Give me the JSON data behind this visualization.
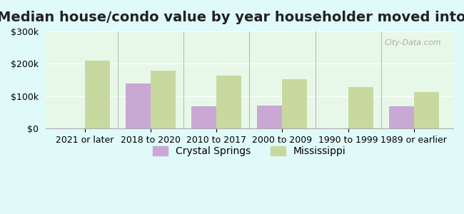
{
  "title": "Median house/condo value by year householder moved into unit",
  "categories": [
    "2021 or later",
    "2018 to 2020",
    "2010 to 2017",
    "2000 to 2009",
    "1990 to 1999",
    "1989 or earlier"
  ],
  "crystal_springs": [
    null,
    140000,
    68000,
    70000,
    null,
    68000
  ],
  "mississippi": [
    210000,
    178000,
    163000,
    153000,
    128000,
    113000
  ],
  "crystal_springs_color": "#c9a8d4",
  "mississippi_color": "#c8d9a0",
  "bar_width": 0.38,
  "ylim": [
    0,
    300000
  ],
  "yticks": [
    0,
    100000,
    200000,
    300000
  ],
  "ytick_labels": [
    "$0",
    "$100k",
    "$200k",
    "$300k"
  ],
  "background_color": "#e0fafa",
  "plot_bg_start": "#e8f8e8",
  "plot_bg_end": "#ffffff",
  "title_fontsize": 14,
  "axis_fontsize": 9,
  "legend_fontsize": 10,
  "watermark": "City-Data.com"
}
